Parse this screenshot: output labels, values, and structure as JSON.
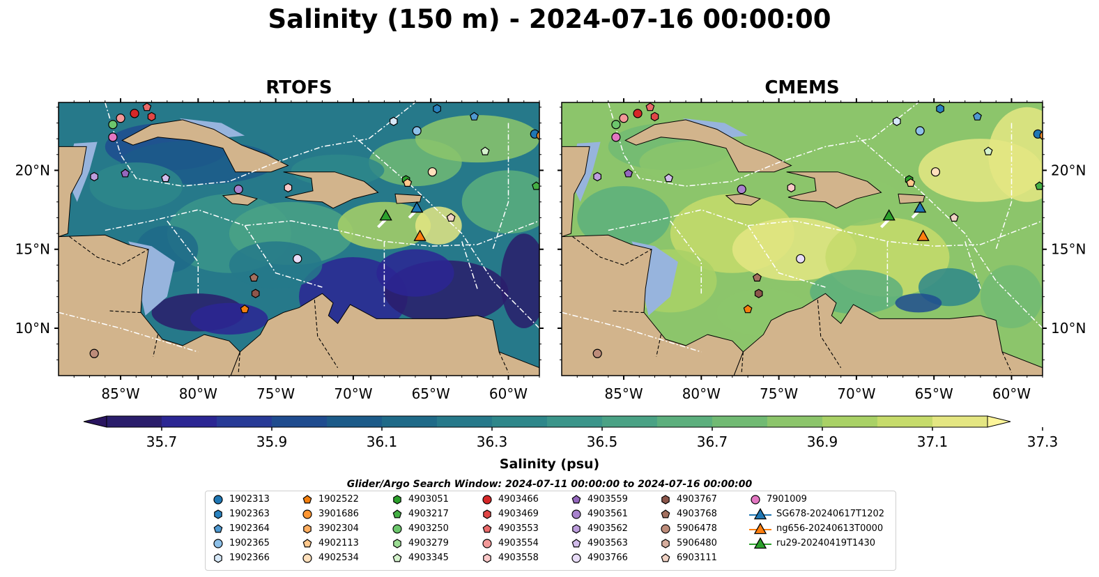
{
  "title": "Salinity (150 m) - 2024-07-16 00:00:00",
  "panels": {
    "left": {
      "title": "RTOFS"
    },
    "right": {
      "title": "CMEMS"
    }
  },
  "map": {
    "lon_range": [
      -89,
      -58
    ],
    "lat_range": [
      7,
      24.3
    ],
    "lon_ticks": [
      "85°W",
      "80°W",
      "75°W",
      "70°W",
      "65°W",
      "60°W"
    ],
    "lat_ticks": [
      "20°N",
      "15°N",
      "10°N"
    ],
    "land_color": "#d2b48c",
    "shelf_color": "#97b4dd",
    "eez_line_color": "#ffffff"
  },
  "colorbar": {
    "label": "Salinity (psu)",
    "ticks": [
      "35.7",
      "35.9",
      "36.1",
      "36.3",
      "36.5",
      "36.7",
      "36.9",
      "37.1",
      "37.3"
    ],
    "colors": [
      "#2a1d6b",
      "#2b2693",
      "#273a96",
      "#1f4c8f",
      "#1c5b89",
      "#1f6a88",
      "#26798a",
      "#2e878a",
      "#3b958a",
      "#4aa285",
      "#5caf7d",
      "#71ba73",
      "#8cc56b",
      "#a9d166",
      "#c6db6b",
      "#e4e682"
    ],
    "extend": "both"
  },
  "search_window": "Glider/Argo Search Window: 2024-07-11 00:00:00 to 2024-07-16 00:00:00",
  "legend": [
    {
      "label": "1902313",
      "color": "#1f77b4",
      "marker": "circle"
    },
    {
      "label": "1902363",
      "color": "#2a83c0",
      "marker": "hexagon"
    },
    {
      "label": "1902364",
      "color": "#4f99d1",
      "marker": "pentagon"
    },
    {
      "label": "1902365",
      "color": "#8dc0e8",
      "marker": "circle"
    },
    {
      "label": "1902366",
      "color": "#d6e8f8",
      "marker": "hexagon"
    },
    {
      "label": "1902522",
      "color": "#f47f0e",
      "marker": "pentagon"
    },
    {
      "label": "3901686",
      "color": "#ff9632",
      "marker": "circle"
    },
    {
      "label": "3902304",
      "color": "#ffae60",
      "marker": "hexagon"
    },
    {
      "label": "4902113",
      "color": "#ffc88c",
      "marker": "pentagon"
    },
    {
      "label": "4902534",
      "color": "#ffe0bc",
      "marker": "circle"
    },
    {
      "label": "4903051",
      "color": "#2ca02c",
      "marker": "hexagon"
    },
    {
      "label": "4903217",
      "color": "#45b045",
      "marker": "pentagon"
    },
    {
      "label": "4903250",
      "color": "#6cc66c",
      "marker": "circle"
    },
    {
      "label": "4903279",
      "color": "#9bdc93",
      "marker": "hexagon"
    },
    {
      "label": "4903345",
      "color": "#d4f2cc",
      "marker": "pentagon"
    },
    {
      "label": "4903466",
      "color": "#d62728",
      "marker": "circle"
    },
    {
      "label": "4903469",
      "color": "#e04646",
      "marker": "hexagon"
    },
    {
      "label": "4903553",
      "color": "#ea6b6b",
      "marker": "pentagon"
    },
    {
      "label": "4903554",
      "color": "#f29898",
      "marker": "circle"
    },
    {
      "label": "4903558",
      "color": "#fac8c8",
      "marker": "hexagon"
    },
    {
      "label": "4903559",
      "color": "#9467bd",
      "marker": "pentagon"
    },
    {
      "label": "4903561",
      "color": "#a882cd",
      "marker": "circle"
    },
    {
      "label": "4903562",
      "color": "#bc9ddc",
      "marker": "hexagon"
    },
    {
      "label": "4903563",
      "color": "#d2bceb",
      "marker": "pentagon"
    },
    {
      "label": "4903766",
      "color": "#e8dcf7",
      "marker": "circle"
    },
    {
      "label": "4903767",
      "color": "#8c564b",
      "marker": "hexagon"
    },
    {
      "label": "4903768",
      "color": "#a3705f",
      "marker": "pentagon"
    },
    {
      "label": "5906478",
      "color": "#bd8c7a",
      "marker": "circle"
    },
    {
      "label": "5906480",
      "color": "#d7ae9e",
      "marker": "hexagon"
    },
    {
      "label": "6903111",
      "color": "#f0d2c4",
      "marker": "pentagon"
    },
    {
      "label": "7901009",
      "color": "#e377c2",
      "marker": "circle"
    },
    {
      "label": "SG678-20240617T1202",
      "color": "#1f77b4",
      "marker": "triangle"
    },
    {
      "label": "ng656-20240613T0000",
      "color": "#ff7f0e",
      "marker": "triangle"
    },
    {
      "label": "ru29-20240419T1430",
      "color": "#2ca02c",
      "marker": "triangle"
    }
  ],
  "platforms": [
    {
      "id": "1902313",
      "lon": -58.3,
      "lat": 22.3
    },
    {
      "id": "3901686",
      "lon": -57.9,
      "lat": 22.2
    },
    {
      "id": "1902363",
      "lon": -64.6,
      "lat": 23.9
    },
    {
      "id": "1902364",
      "lon": -62.2,
      "lat": 23.4
    },
    {
      "id": "1902365",
      "lon": -65.9,
      "lat": 22.5
    },
    {
      "id": "1902366",
      "lon": -67.4,
      "lat": 23.1
    },
    {
      "id": "4903345",
      "lon": -61.5,
      "lat": 21.2
    },
    {
      "id": "4903217",
      "lon": -58.2,
      "lat": 19.0
    },
    {
      "id": "4902534",
      "lon": -64.9,
      "lat": 19.9
    },
    {
      "id": "4903051",
      "lon": -66.6,
      "lat": 19.4
    },
    {
      "id": "4902113",
      "lon": -66.5,
      "lat": 19.2
    },
    {
      "id": "4903250",
      "lon": -85.5,
      "lat": 22.9
    },
    {
      "id": "4903554",
      "lon": -85.0,
      "lat": 23.3
    },
    {
      "id": "4903466",
      "lon": -84.1,
      "lat": 23.6
    },
    {
      "id": "4903553",
      "lon": -83.3,
      "lat": 24.0
    },
    {
      "id": "4903469",
      "lon": -83.0,
      "lat": 23.4
    },
    {
      "id": "7901009",
      "lon": -85.5,
      "lat": 22.1
    },
    {
      "id": "4903562",
      "lon": -86.7,
      "lat": 19.6
    },
    {
      "id": "4903559",
      "lon": -84.7,
      "lat": 19.8
    },
    {
      "id": "4903563",
      "lon": -82.1,
      "lat": 19.5
    },
    {
      "id": "4903561",
      "lon": -77.4,
      "lat": 18.8
    },
    {
      "id": "4903558",
      "lon": -74.2,
      "lat": 18.9
    },
    {
      "id": "6903111",
      "lon": -63.7,
      "lat": 17.0
    },
    {
      "id": "4903766",
      "lon": -73.6,
      "lat": 14.4
    },
    {
      "id": "4903767",
      "lon": -76.3,
      "lat": 12.2
    },
    {
      "id": "4903768",
      "lon": -76.4,
      "lat": 13.2
    },
    {
      "id": "1902522",
      "lon": -77.0,
      "lat": 11.2
    },
    {
      "id": "5906478",
      "lon": -86.7,
      "lat": 8.4
    }
  ],
  "gliders": [
    {
      "id": "SG678-20240617T1202",
      "lon": -65.9,
      "lat": 17.6
    },
    {
      "id": "ru29-20240419T1430",
      "lon": -67.9,
      "lat": 17.1
    },
    {
      "id": "ng656-20240613T0000",
      "lon": -65.7,
      "lat": 15.8
    }
  ]
}
